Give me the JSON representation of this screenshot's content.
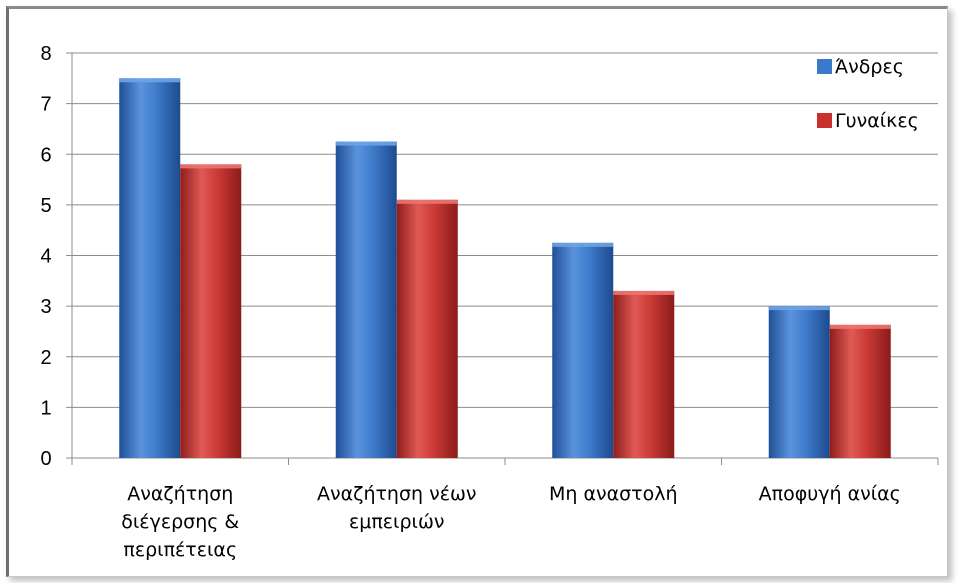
{
  "chart_data": {
    "type": "bar",
    "categories": [
      [
        "Αναζήτηση",
        "διέγερσης &",
        "περιπέτειας"
      ],
      [
        "Αναζήτηση νέων",
        "εμπειριών"
      ],
      [
        "Μη αναστολή"
      ],
      [
        "Αποφυγή ανίας"
      ]
    ],
    "series": [
      {
        "name": "Άνδρες",
        "values": [
          7.5,
          6.25,
          4.25,
          3.0
        ],
        "color": "#3a78c9"
      },
      {
        "name": "Γυναίκες",
        "values": [
          5.8,
          5.1,
          3.3,
          2.63
        ],
        "color": "#c9302e"
      }
    ],
    "ylim": [
      0,
      8
    ],
    "yticks": [
      "0",
      "1",
      "2",
      "3",
      "4",
      "5",
      "6",
      "7",
      "8"
    ],
    "grid": true,
    "legend_position": "top-right",
    "title": "",
    "xlabel": "",
    "ylabel": ""
  }
}
